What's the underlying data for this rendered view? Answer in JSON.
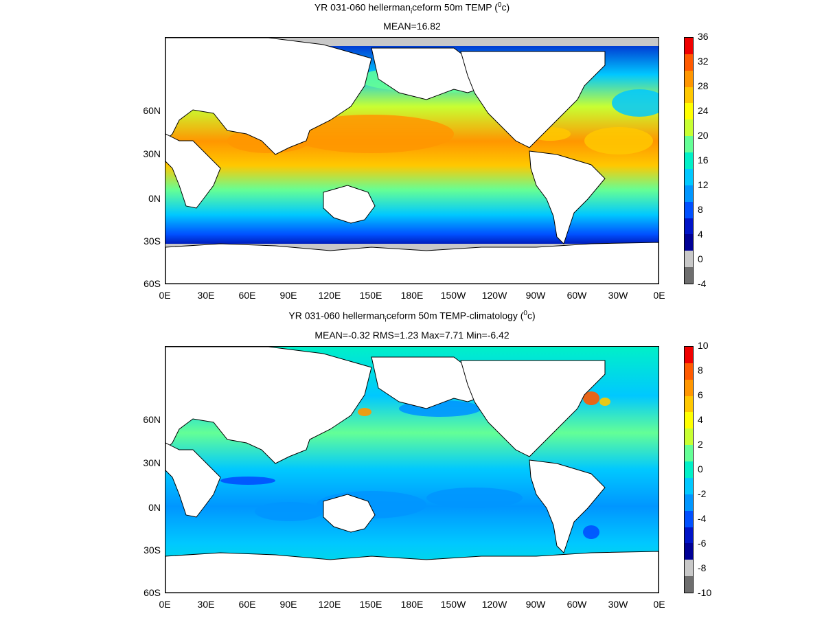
{
  "panels": [
    {
      "title_parts": [
        "YR 031-060 hellerman",
        "i",
        "ceform 50m TEMP (",
        "0",
        "c)"
      ],
      "stats": "MEAN=16.82",
      "xticks": [
        "0E",
        "30E",
        "60E",
        "90E",
        "120E",
        "150E",
        "180E",
        "150W",
        "120W",
        "90W",
        "60W",
        "30W",
        "0E"
      ],
      "yticks": [
        "60N",
        "30N",
        "0N",
        "30S",
        "60S"
      ],
      "colorbar_ticks": [
        "36",
        "32",
        "28",
        "24",
        "20",
        "16",
        "12",
        "8",
        "4",
        "0",
        "-4"
      ],
      "colorbar_colors": [
        "#f00000",
        "#ff5a00",
        "#ff9600",
        "#ffc800",
        "#ffff00",
        "#c8ff32",
        "#64ff96",
        "#00f0c8",
        "#00c8ff",
        "#0096ff",
        "#0050ff",
        "#0014c8",
        "#000096",
        "#c8c8c8",
        "#6e6e6e"
      ]
    },
    {
      "title_parts": [
        "YR 031-060 hellerman",
        "i",
        "ceform 50m TEMP-climatology (",
        "0",
        "c)"
      ],
      "stats": "MEAN=-0.32   RMS=1.23   Max=7.71   Min=-6.42",
      "xticks": [
        "0E",
        "30E",
        "60E",
        "90E",
        "120E",
        "150E",
        "180E",
        "150W",
        "120W",
        "90W",
        "60W",
        "30W",
        "0E"
      ],
      "yticks": [
        "60N",
        "30N",
        "0N",
        "30S",
        "60S"
      ],
      "colorbar_ticks": [
        "10",
        "8",
        "6",
        "4",
        "2",
        "0",
        "-2",
        "-4",
        "-6",
        "-8",
        "-10"
      ],
      "colorbar_colors": [
        "#f00000",
        "#ff5a00",
        "#ff9600",
        "#ffc800",
        "#ffff00",
        "#c8ff32",
        "#64ff96",
        "#00f0c8",
        "#00c8ff",
        "#0096ff",
        "#0050ff",
        "#0014c8",
        "#000096",
        "#c8c8c8",
        "#6e6e6e"
      ]
    }
  ],
  "colors": {
    "land": "#ffffff",
    "ice": "#c8c8c8",
    "coast": "#000000"
  }
}
